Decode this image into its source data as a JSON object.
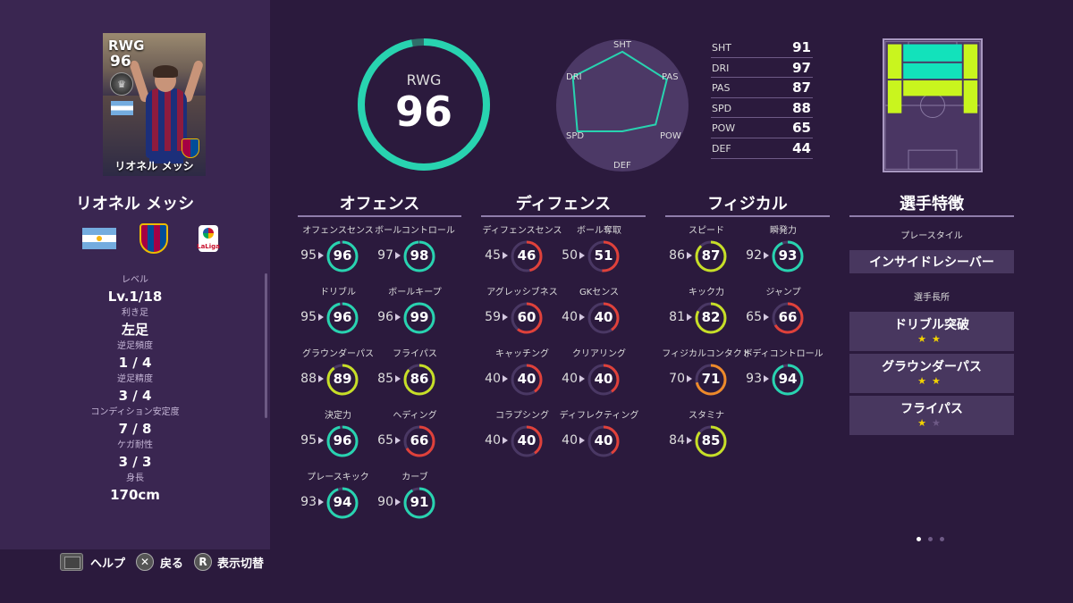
{
  "card": {
    "position": "RWG",
    "overall": "96",
    "name": "リオネル メッシ"
  },
  "player": {
    "name": "リオネル メッシ"
  },
  "profile": [
    {
      "label": "レベル",
      "value": "Lv.1/18"
    },
    {
      "label": "利き足",
      "value": "左足"
    },
    {
      "label": "逆足頻度",
      "value": "1 / 4"
    },
    {
      "label": "逆足精度",
      "value": "3 / 4"
    },
    {
      "label": "コンディション安定度",
      "value": "7 / 8"
    },
    {
      "label": "ケガ耐性",
      "value": "3 / 3"
    },
    {
      "label": "身長",
      "value": "170cm"
    }
  ],
  "controls": {
    "help": "ヘルプ",
    "back": "戻る",
    "r_button": "R",
    "toggle_view": "表示切替"
  },
  "rating": {
    "position": "RWG",
    "overall": "96",
    "max": 99
  },
  "radar": {
    "labels": [
      "SHT",
      "PAS",
      "POW",
      "DEF",
      "SPD",
      "DRI"
    ],
    "values": [
      91,
      87,
      65,
      44,
      88,
      97
    ]
  },
  "stats": [
    {
      "name": "SHT",
      "value": "91"
    },
    {
      "name": "DRI",
      "value": "97"
    },
    {
      "name": "PAS",
      "value": "87"
    },
    {
      "name": "SPD",
      "value": "88"
    },
    {
      "name": "POW",
      "value": "65"
    },
    {
      "name": "DEF",
      "value": "44"
    }
  ],
  "sections": {
    "offense": "オフェンス",
    "defense": "ディフェンス",
    "physical": "フィジカル",
    "traits": "選手特徴"
  },
  "offense_attrs": [
    {
      "name": "オフェンスセンス",
      "base": "95",
      "value": "96"
    },
    {
      "name": "ボールコントロール",
      "base": "97",
      "value": "98"
    },
    {
      "name": "ドリブル",
      "base": "95",
      "value": "96"
    },
    {
      "name": "ボールキープ",
      "base": "96",
      "value": "99"
    },
    {
      "name": "グラウンダーパス",
      "base": "88",
      "value": "89"
    },
    {
      "name": "フライパス",
      "base": "85",
      "value": "86"
    },
    {
      "name": "決定力",
      "base": "95",
      "value": "96"
    },
    {
      "name": "ヘディング",
      "base": "65",
      "value": "66"
    },
    {
      "name": "プレースキック",
      "base": "93",
      "value": "94"
    },
    {
      "name": "カーブ",
      "base": "90",
      "value": "91"
    }
  ],
  "defense_attrs": [
    {
      "name": "ディフェンスセンス",
      "base": "45",
      "value": "46"
    },
    {
      "name": "ボール奪取",
      "base": "50",
      "value": "51"
    },
    {
      "name": "アグレッシブネス",
      "base": "59",
      "value": "60"
    },
    {
      "name": "GKセンス",
      "base": "40",
      "value": "40"
    },
    {
      "name": "キャッチング",
      "base": "40",
      "value": "40"
    },
    {
      "name": "クリアリング",
      "base": "40",
      "value": "40"
    },
    {
      "name": "コラプシング",
      "base": "40",
      "value": "40"
    },
    {
      "name": "ディフレクティング",
      "base": "40",
      "value": "40"
    }
  ],
  "physical_attrs": [
    {
      "name": "スピード",
      "base": "86",
      "value": "87"
    },
    {
      "name": "瞬発力",
      "base": "92",
      "value": "93"
    },
    {
      "name": "キック力",
      "base": "81",
      "value": "82"
    },
    {
      "name": "ジャンプ",
      "base": "65",
      "value": "66"
    },
    {
      "name": "フィジカルコンタクト",
      "base": "70",
      "value": "71"
    },
    {
      "name": "ボディコントロール",
      "base": "93",
      "value": "94"
    },
    {
      "name": "スタミナ",
      "base": "84",
      "value": "85"
    }
  ],
  "traits": {
    "playstyle_label": "プレースタイル",
    "playstyle": "インサイドレシーバー",
    "skills_label": "選手長所",
    "skills": [
      {
        "name": "ドリブル突破",
        "stars": 2
      },
      {
        "name": "グラウンダーパス",
        "stars": 2
      },
      {
        "name": "フライパス",
        "stars": 1
      }
    ]
  },
  "colors": {
    "ring_teal": "#28d3b0",
    "ring_lime": "#c7df27",
    "ring_yellow": "#e7c72a",
    "ring_orange": "#ee8a2a",
    "ring_red": "#e0413a",
    "pitch_green": "#c9f51e",
    "pitch_teal": "#12e2bb"
  }
}
